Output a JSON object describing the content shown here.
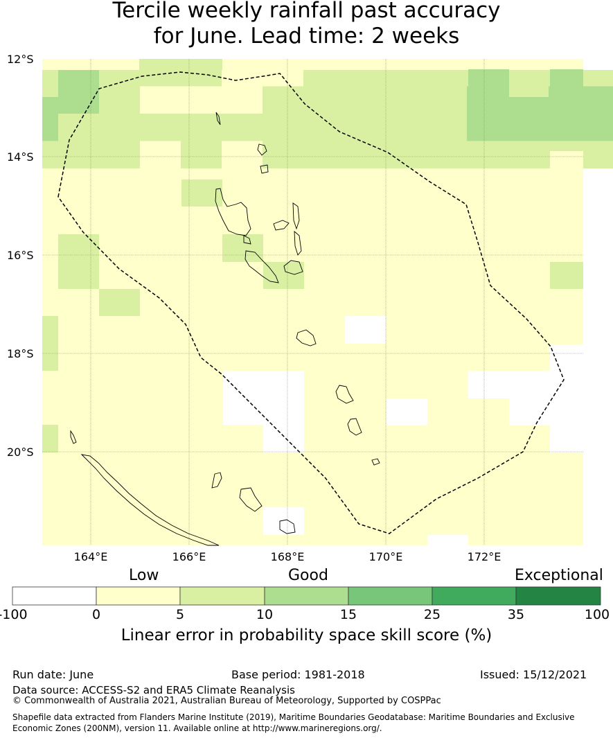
{
  "title": {
    "line1": "Tercile weekly rainfall past accuracy",
    "line2": "for June. Lead time: 2 weeks"
  },
  "map": {
    "lat_labels": [
      "12°S",
      "14°S",
      "16°S",
      "18°S",
      "20°S"
    ],
    "lon_labels": [
      "164°E",
      "166°E",
      "168°E",
      "170°E",
      "172°E"
    ]
  },
  "legend": {
    "categories": {
      "low": "Low",
      "good": "Good",
      "exceptional": "Exceptional"
    },
    "ticks": [
      "-100",
      "0",
      "5",
      "10",
      "15",
      "25",
      "35",
      "100"
    ],
    "colors": [
      "#ffffff",
      "#ffffcc",
      "#d9f0a3",
      "#addd8e",
      "#78c679",
      "#41ab5d",
      "#238443"
    ],
    "title": "Linear error in probability space skill score (%)"
  },
  "footer": {
    "run_date": "Run date: June",
    "base_period": "Base period: 1981-2018",
    "issued": "Issued: 15/12/2021",
    "data_source": "Data source: ACCESS-S2 and ERA5 Climate Reanalysis",
    "copyright": "© Commonwealth of Australia 2021, Australian Bureau of Meteorology, Supported by COSPPac",
    "shapefile": "Shapefile data extracted from Flanders Marine Institute (2019), Maritime Boundaries Geodatabase: Maritime Boundaries and Exclusive Economic Zones (200NM), version 11. Available online at http://www.marineregions.org/."
  }
}
